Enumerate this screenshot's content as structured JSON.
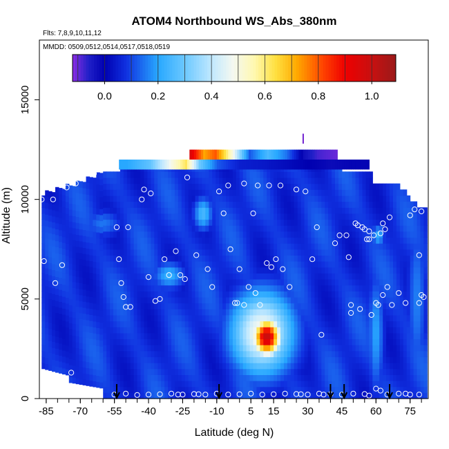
{
  "chart_data": {
    "type": "heatmap",
    "title": "ATOM4 Northbound WS_Abs_380nm",
    "subtitle_flights": "Flts: 7,8,9,10,11,12",
    "subtitle_dates": "MMDD: 0509,0512,0514,0517,0518,0519",
    "xlabel": "Latitude (deg N)",
    "ylabel": "Altitude (m)",
    "xlim": [
      -88,
      83
    ],
    "ylim": [
      0,
      18000
    ],
    "x_ticks": [
      -85,
      -70,
      -55,
      -40,
      -25,
      -10,
      5,
      15,
      30,
      45,
      60,
      75
    ],
    "y_ticks": [
      0,
      5000,
      10000,
      15000
    ],
    "colorbar": {
      "range": [
        -0.12,
        1.09
      ],
      "ticks": [
        0.0,
        0.2,
        0.4,
        0.6,
        0.8,
        1.0
      ],
      "tick_labels": [
        "0.0",
        "0.2",
        "0.4",
        "0.6",
        "0.8",
        "1.0"
      ]
    },
    "arrows_latitude": [
      -54,
      -9,
      40,
      46,
      66
    ],
    "blobs": [
      {
        "lat": 12,
        "alt": 3100,
        "value": 1.0,
        "sx": 4.5,
        "sy": 700
      },
      {
        "lat": 10,
        "alt": 3300,
        "value": 0.5,
        "sx": 10,
        "sy": 1500
      },
      {
        "lat": -16,
        "alt": 9300,
        "value": 0.25,
        "sx": 3,
        "sy": 600
      },
      {
        "lat": -31,
        "alt": 6200,
        "value": 0.22,
        "sx": 5,
        "sy": 500
      },
      {
        "lat": 61,
        "alt": 8200,
        "value": 0.22,
        "sx": 2,
        "sy": 400
      },
      {
        "lat": 60,
        "alt": 3300,
        "value": 0.2,
        "sx": 2.5,
        "sy": 2200
      },
      {
        "lat": -60,
        "alt": 8800,
        "value": 0.15,
        "sx": 6,
        "sy": 500
      },
      {
        "lat": 78,
        "alt": 5000,
        "value": 0.16,
        "sx": 3,
        "sy": 3000
      }
    ],
    "upper_band": [
      {
        "lat": -50,
        "value": 0.2
      },
      {
        "lat": -40,
        "value": 0.28
      },
      {
        "lat": -30,
        "value": 0.5
      },
      {
        "lat": -24,
        "value": 0.62
      },
      {
        "lat": -18,
        "value": 0.3
      },
      {
        "lat": -10,
        "value": 0.12
      },
      {
        "lat": 0,
        "value": 0.05
      },
      {
        "lat": 10,
        "value": 0.04
      },
      {
        "lat": 20,
        "value": 0.02
      },
      {
        "lat": 30,
        "value": 0.0
      },
      {
        "lat": 40,
        "value": -0.02
      },
      {
        "lat": 48,
        "value": -0.01
      }
    ],
    "top_strip": [
      {
        "lat": -22,
        "value": 0.95
      },
      {
        "lat": -16,
        "value": 0.72
      },
      {
        "lat": -11,
        "value": 0.8
      },
      {
        "lat": -4,
        "value": 0.52
      },
      {
        "lat": 4,
        "value": 0.12
      },
      {
        "lat": 12,
        "value": 0.25
      },
      {
        "lat": 20,
        "value": 0.15
      },
      {
        "lat": 28,
        "value": -0.03
      },
      {
        "lat": 34,
        "value": -0.08
      },
      {
        "lat": 42,
        "value": -0.1
      }
    ],
    "points": [
      [
        -87,
        10000
      ],
      [
        -86,
        6900
      ],
      [
        -82,
        10000
      ],
      [
        -81,
        5800
      ],
      [
        -78,
        6700
      ],
      [
        -76,
        10600
      ],
      [
        -74,
        1300
      ],
      [
        -72,
        10800
      ],
      [
        -69,
        11200
      ],
      [
        -67,
        11300
      ],
      [
        -65,
        11400
      ],
      [
        -64,
        11300
      ],
      [
        -54,
        8600
      ],
      [
        -53,
        7000
      ],
      [
        -52,
        5800
      ],
      [
        -51,
        5100
      ],
      [
        -50,
        4600
      ],
      [
        -49,
        8600
      ],
      [
        -48,
        4600
      ],
      [
        -43,
        10000
      ],
      [
        -42,
        10500
      ],
      [
        -40,
        6100
      ],
      [
        -39,
        10300
      ],
      [
        -37,
        4900
      ],
      [
        -35,
        5000
      ],
      [
        -33,
        7000
      ],
      [
        -31,
        6200
      ],
      [
        -28,
        7400
      ],
      [
        -26,
        6200
      ],
      [
        -24,
        6000
      ],
      [
        -23,
        11100
      ],
      [
        -19,
        7200
      ],
      [
        -14,
        6500
      ],
      [
        -12,
        5600
      ],
      [
        -9,
        10400
      ],
      [
        -7,
        9300
      ],
      [
        -5,
        10700
      ],
      [
        -4,
        7500
      ],
      [
        -2,
        4800
      ],
      [
        -1,
        4800
      ],
      [
        0,
        6500
      ],
      [
        2,
        10800
      ],
      [
        2,
        4700
      ],
      [
        4,
        5600
      ],
      [
        6,
        9300
      ],
      [
        7,
        5300
      ],
      [
        8,
        10700
      ],
      [
        9,
        4700
      ],
      [
        12,
        6800
      ],
      [
        13,
        10700
      ],
      [
        14,
        6600
      ],
      [
        16,
        7000
      ],
      [
        18,
        10700
      ],
      [
        19,
        6500
      ],
      [
        22,
        5600
      ],
      [
        25,
        10500
      ],
      [
        29,
        10400
      ],
      [
        32,
        7000
      ],
      [
        34,
        8600
      ],
      [
        36,
        3200
      ],
      [
        42,
        7800
      ],
      [
        44,
        8200
      ],
      [
        47,
        8200
      ],
      [
        48,
        7100
      ],
      [
        49,
        4300
      ],
      [
        49,
        4700
      ],
      [
        51,
        8800
      ],
      [
        52,
        8700
      ],
      [
        53,
        4500
      ],
      [
        54,
        8600
      ],
      [
        55,
        8500
      ],
      [
        56,
        8000
      ],
      [
        57,
        8000
      ],
      [
        57,
        8400
      ],
      [
        58,
        4200
      ],
      [
        59,
        8200
      ],
      [
        60,
        4800
      ],
      [
        61,
        4700
      ],
      [
        62,
        8300
      ],
      [
        63,
        8800
      ],
      [
        63,
        5200
      ],
      [
        64,
        8500
      ],
      [
        65,
        5600
      ],
      [
        66,
        9100
      ],
      [
        67,
        4700
      ],
      [
        68,
        11400
      ],
      [
        69,
        11100
      ],
      [
        70,
        5300
      ],
      [
        70,
        11200
      ],
      [
        72,
        10700
      ],
      [
        73,
        4800
      ],
      [
        75,
        9200
      ],
      [
        77,
        9500
      ],
      [
        79,
        4800
      ],
      [
        79,
        7200
      ],
      [
        80,
        9400
      ],
      [
        81,
        5100
      ],
      [
        80,
        5200
      ],
      [
        -55,
        200
      ],
      [
        -50,
        250
      ],
      [
        -45,
        180
      ],
      [
        -40,
        200
      ],
      [
        -35,
        220
      ],
      [
        -30,
        250
      ],
      [
        -25,
        200
      ],
      [
        -20,
        230
      ],
      [
        -15,
        200
      ],
      [
        -10,
        250
      ],
      [
        -5,
        200
      ],
      [
        0,
        220
      ],
      [
        5,
        250
      ],
      [
        10,
        200
      ],
      [
        15,
        220
      ],
      [
        20,
        250
      ],
      [
        25,
        230
      ],
      [
        30,
        200
      ],
      [
        35,
        250
      ],
      [
        40,
        220
      ],
      [
        45,
        200
      ],
      [
        50,
        250
      ],
      [
        55,
        230
      ],
      [
        60,
        500
      ],
      [
        62,
        400
      ],
      [
        65,
        200
      ],
      [
        70,
        250
      ],
      [
        75,
        200
      ],
      [
        79,
        200
      ],
      [
        -27,
        200
      ],
      [
        -18,
        220
      ],
      [
        27,
        220
      ],
      [
        37,
        200
      ],
      [
        57,
        150
      ],
      [
        73,
        250
      ]
    ]
  }
}
